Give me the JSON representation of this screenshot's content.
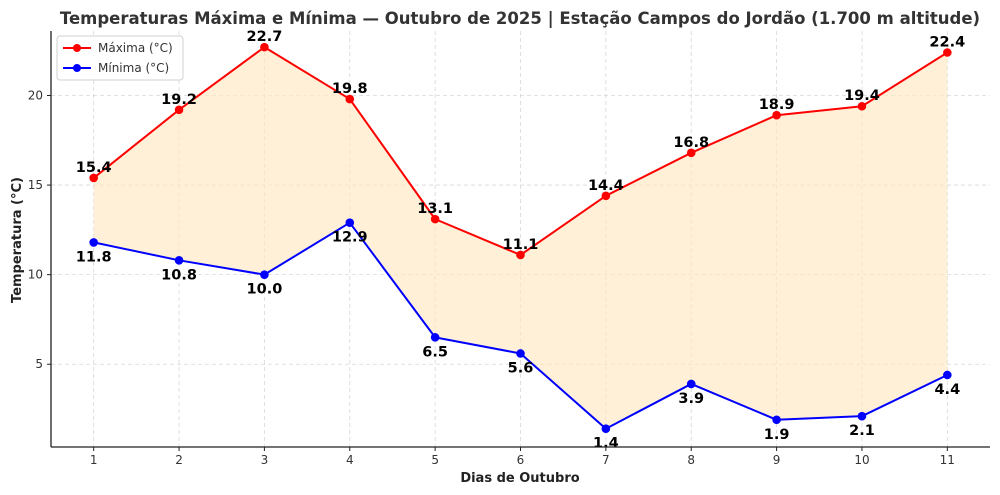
{
  "chart_data": {
    "type": "line",
    "title": "Temperaturas Máxima e Mínima — Outubro de 2025 | Estação Campos do Jordão (1.700 m altitude)",
    "xlabel": "Dias de Outubro",
    "ylabel": "Temperatura (°C)",
    "x": [
      1,
      2,
      3,
      4,
      5,
      6,
      7,
      8,
      9,
      10,
      11
    ],
    "categories": [
      "1",
      "2",
      "3",
      "4",
      "5",
      "6",
      "7",
      "8",
      "9",
      "10",
      "11"
    ],
    "series": [
      {
        "name": "Máxima (°C)",
        "color": "#ff0000",
        "values": [
          15.4,
          19.2,
          22.7,
          19.8,
          13.1,
          11.1,
          14.4,
          16.8,
          18.9,
          19.4,
          22.4
        ],
        "labels": [
          "15.4",
          "19.2",
          "22.7",
          "19.8",
          "13.1",
          "11.1",
          "14.4",
          "16.8",
          "18.9",
          "19.4",
          "22.4"
        ],
        "label_position": "above"
      },
      {
        "name": "Mínima (°C)",
        "color": "#0000ff",
        "values": [
          11.8,
          10.8,
          10.0,
          12.9,
          6.5,
          5.6,
          1.4,
          3.9,
          1.9,
          2.1,
          4.4
        ],
        "labels": [
          "11.8",
          "10.8",
          "10.0",
          "12.9",
          "6.5",
          "5.6",
          "1.4",
          "3.9",
          "1.9",
          "2.1",
          "4.4"
        ],
        "label_position": "below"
      }
    ],
    "fill_between": {
      "color": "#ffe8c2",
      "opacity": 0.65
    },
    "yticks": [
      5,
      10,
      15,
      20
    ],
    "ytick_labels": [
      "5",
      "10",
      "15",
      "20"
    ],
    "xticks": [
      1,
      2,
      3,
      4,
      5,
      6,
      7,
      8,
      9,
      10,
      11
    ],
    "xlim": [
      0.5,
      11.5
    ],
    "ylim": [
      0.38,
      23.6
    ],
    "grid": true,
    "legend_position": "upper left"
  },
  "legend": {
    "items": [
      {
        "label": "Máxima (°C)",
        "color": "#ff0000"
      },
      {
        "label": "Mínima (°C)",
        "color": "#0000ff"
      }
    ]
  }
}
